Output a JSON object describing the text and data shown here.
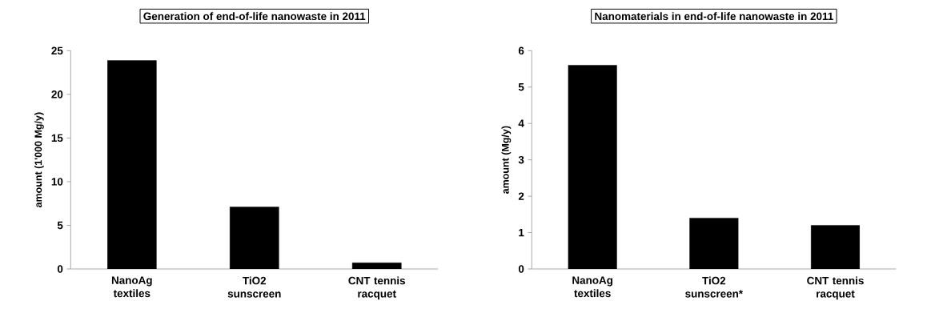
{
  "chart_data": [
    {
      "type": "bar",
      "title": "Generation of end-of-life nanowaste in 2011",
      "ylabel": "amount (1'000 Mg/y)",
      "categories": [
        "NanoAg textiles",
        "TiO2 sunscreen",
        "CNT tennis racquet"
      ],
      "values": [
        23.9,
        7.1,
        0.7
      ],
      "color": "#000000",
      "ylim": [
        0,
        25
      ],
      "yticks": [
        0,
        5,
        10,
        15,
        20,
        25
      ]
    },
    {
      "type": "bar",
      "title": "Nanomaterials in end-of-life nanowaste in 2011",
      "ylabel": "amount (Mg/y)",
      "categories": [
        "NanoAg textiles",
        "TiO2 sunscreen*",
        "CNT tennis racquet"
      ],
      "values": [
        5.6,
        1.4,
        1.2
      ],
      "color": "#000000",
      "ylim": [
        0,
        6
      ],
      "yticks": [
        0,
        1,
        2,
        3,
        4,
        5,
        6
      ]
    }
  ]
}
